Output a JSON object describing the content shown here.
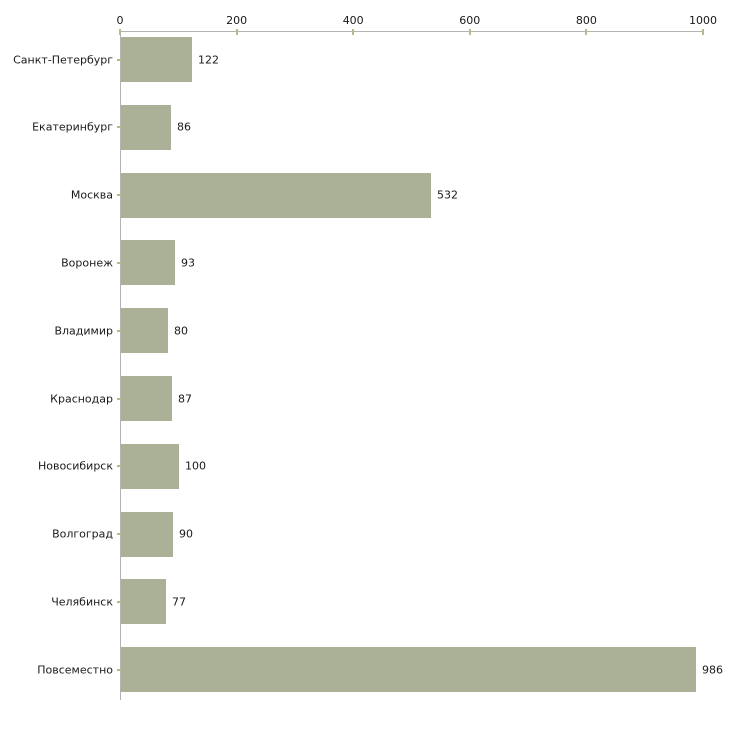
{
  "chart_data": {
    "type": "bar",
    "orientation": "horizontal",
    "title": "",
    "xlabel": "",
    "ylabel": "",
    "categories": [
      "Санкт-Петербург",
      "Екатеринбург",
      "Москва",
      "Воронеж",
      "Владимир",
      "Краснодар",
      "Новосибирск",
      "Волгоград",
      "Челябинск",
      "Повсеместно"
    ],
    "values": [
      122,
      86,
      532,
      93,
      80,
      87,
      100,
      90,
      77,
      986
    ],
    "value_labels": [
      "122",
      "86",
      "532",
      "93",
      "80",
      "87",
      "100",
      "90",
      "77",
      "986"
    ],
    "x_ticks": [
      0,
      200,
      400,
      600,
      800,
      1000
    ],
    "x_tick_labels": [
      "0",
      "200",
      "400",
      "600",
      "800",
      "1000"
    ],
    "xlim": [
      0,
      1000
    ],
    "grid": false,
    "legend": false,
    "axis_position": "top",
    "colors": {
      "bar": "#abb197",
      "axis_line": "#b3b3b3",
      "tick_mark": "#b8ba8c",
      "text": "#1a1a1a",
      "background": "#ffffff"
    }
  }
}
